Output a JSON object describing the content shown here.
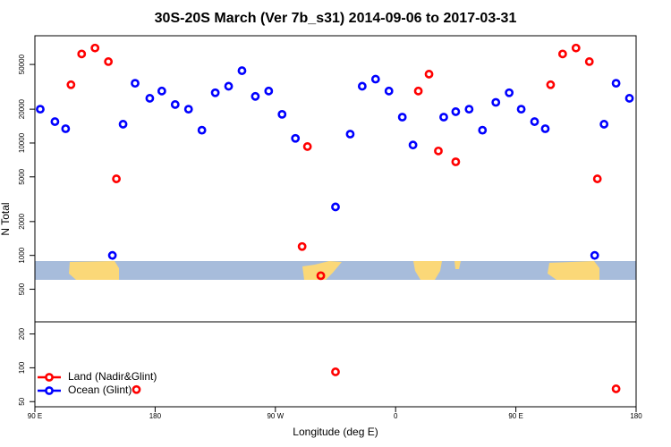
{
  "chart_data": {
    "type": "scatter",
    "title": "30S-20S March (Ver 7b_s31)   2014-09-06 to 2017-03-31",
    "x_label": "Longitude (deg E)",
    "y_label": "N Total",
    "log_y": true,
    "legend": "lower left",
    "xlim": [
      90,
      540
    ],
    "xticks": [
      {
        "value": 90,
        "label": "90 E"
      },
      180,
      {
        "value": 270,
        "label": "90 W"
      },
      {
        "value": 360,
        "label": "0"
      },
      {
        "value": 450,
        "label": "90 E"
      },
      {
        "value": 540,
        "label": "180"
      }
    ],
    "ylim": [
      45,
      90000
    ],
    "yticks": [
      50,
      100,
      200,
      500,
      1000,
      2000,
      5000,
      10000,
      20000,
      50000
    ],
    "series": [
      {
        "name": "Land (Nadir&Glint)",
        "color": "#ff0000",
        "x": [
          117,
          125,
          135,
          145,
          151,
          166,
          290,
          294,
          304,
          315,
          377,
          385,
          392,
          405,
          476,
          485,
          495,
          505,
          511,
          525
        ],
        "values": [
          33000,
          62000,
          70000,
          53000,
          4800,
          64,
          1200,
          9300,
          660,
          92,
          29000,
          41000,
          8500,
          6800,
          33000,
          62000,
          70000,
          53000,
          4800,
          65
        ]
      },
      {
        "name": "Ocean (Glint)",
        "color": "#0000ff",
        "x": [
          94,
          105,
          113,
          148,
          156,
          165,
          176,
          185,
          195,
          205,
          215,
          225,
          235,
          245,
          255,
          265,
          275,
          285,
          315,
          326,
          335,
          345,
          355,
          365,
          373,
          396,
          405,
          415,
          425,
          435,
          445,
          454,
          464,
          472,
          509,
          516,
          525,
          535
        ],
        "values": [
          20000,
          15500,
          13400,
          1000,
          14700,
          34000,
          25000,
          29000,
          22000,
          20000,
          13000,
          28000,
          32000,
          44000,
          26000,
          29000,
          18000,
          11000,
          2700,
          12000,
          32000,
          37000,
          29000,
          17000,
          9600,
          17000,
          19000,
          20000,
          13000,
          23000,
          28000,
          20000,
          15500,
          13400,
          1000,
          14700,
          34000,
          25000
        ]
      }
    ]
  }
}
